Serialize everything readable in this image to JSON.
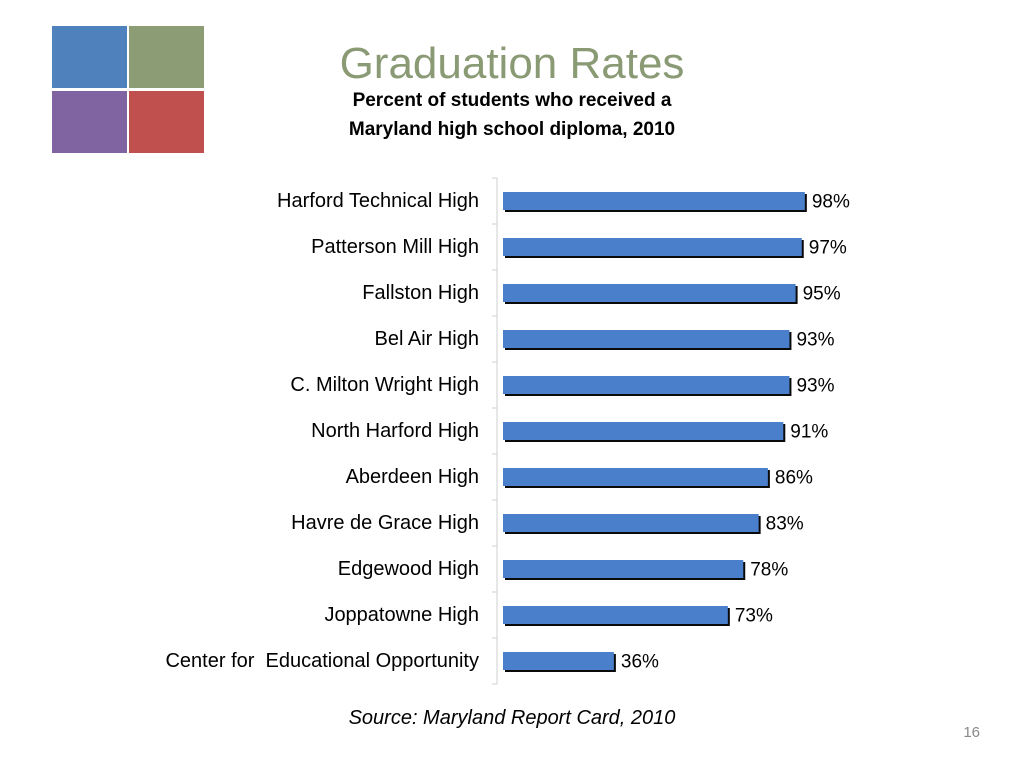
{
  "slide": {
    "title": "Graduation Rates",
    "subtitle_lines": [
      "Percent of students who received a",
      "Maryland high school diploma, 2010"
    ],
    "source": "Source: Maryland Report Card, 2010",
    "page_number": "16",
    "logo_colors": [
      "#4f81bd",
      "#8c9d76",
      "#8064a2",
      "#c0504d"
    ],
    "title_color": "#8a9a74"
  },
  "chart_data": {
    "type": "bar",
    "orientation": "horizontal",
    "categories": [
      "Harford Technical High",
      "Patterson Mill High",
      "Fallston High",
      "Bel Air High",
      "C. Milton Wright High",
      "North Harford High",
      "Aberdeen High",
      "Havre de Grace High",
      "Edgewood High",
      "Joppatowne High",
      "Center for  Educational Opportunity"
    ],
    "values": [
      98,
      97,
      95,
      93,
      93,
      91,
      86,
      83,
      78,
      73,
      36
    ],
    "data_labels": [
      "98%",
      "97%",
      "95%",
      "93%",
      "93%",
      "91%",
      "86%",
      "83%",
      "78%",
      "73%",
      "36%"
    ],
    "xlim": [
      0,
      100
    ],
    "grid": false,
    "legend": "none",
    "bar_color": "#4a7fcb",
    "shadow_color": "#0a0a0a"
  }
}
